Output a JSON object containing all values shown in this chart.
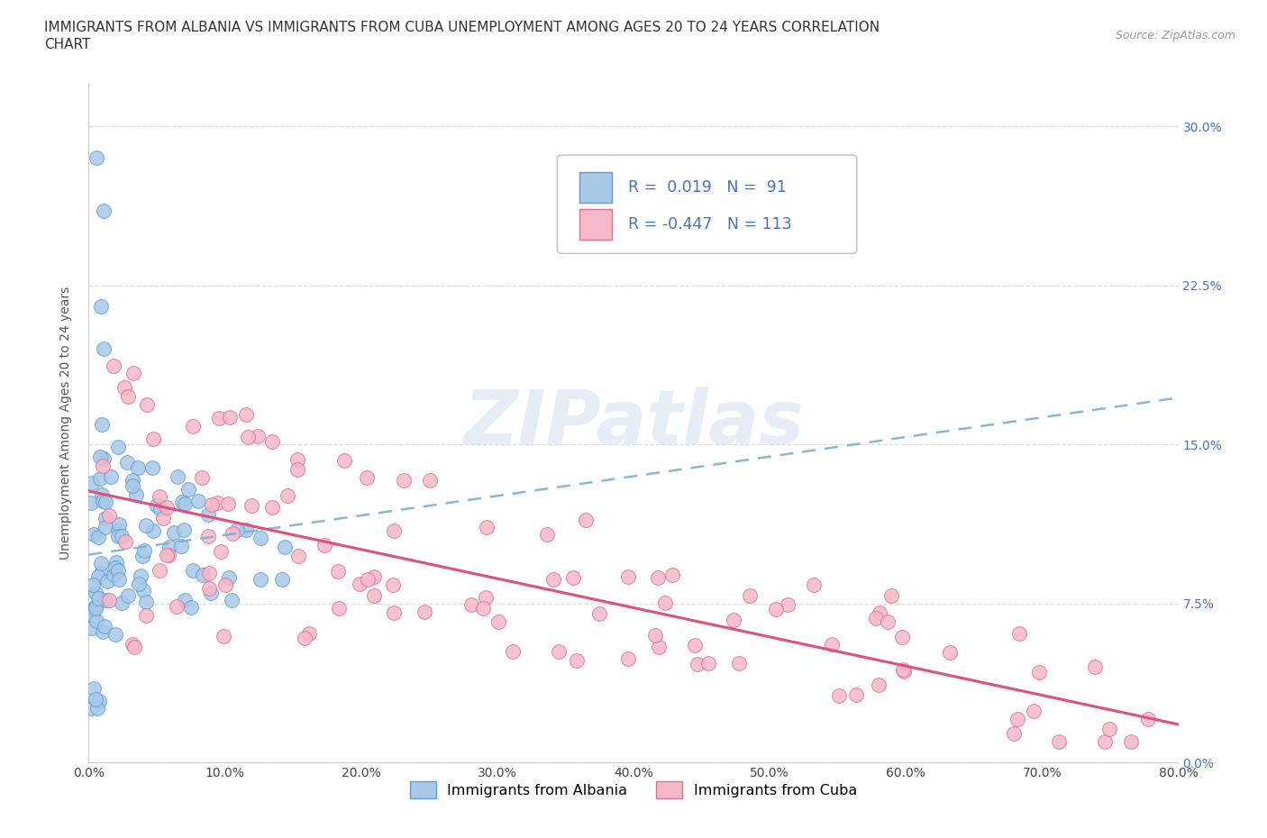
{
  "title_line1": "IMMIGRANTS FROM ALBANIA VS IMMIGRANTS FROM CUBA UNEMPLOYMENT AMONG AGES 20 TO 24 YEARS CORRELATION",
  "title_line2": "CHART",
  "source_text": "Source: ZipAtlas.com",
  "ylabel": "Unemployment Among Ages 20 to 24 years",
  "xlim": [
    0.0,
    0.8
  ],
  "ylim": [
    0.0,
    0.32
  ],
  "x_ticks": [
    0.0,
    0.1,
    0.2,
    0.3,
    0.4,
    0.5,
    0.6,
    0.7,
    0.8
  ],
  "x_tick_labels": [
    "0.0%",
    "10.0%",
    "20.0%",
    "30.0%",
    "40.0%",
    "50.0%",
    "60.0%",
    "70.0%",
    "80.0%"
  ],
  "y_ticks": [
    0.0,
    0.075,
    0.15,
    0.225,
    0.3
  ],
  "y_tick_labels": [
    "0.0%",
    "7.5%",
    "15.0%",
    "22.5%",
    "30.0%"
  ],
  "albania_color": "#a8c8e8",
  "albania_edge": "#5a9fd4",
  "cuba_color": "#f5b8c8",
  "cuba_edge": "#e07090",
  "trend_albania_color": "#7ab0d4",
  "trend_cuba_color": "#e0507a",
  "legend_albania_label": "Immigrants from Albania",
  "legend_cuba_label": "Immigrants from Cuba",
  "R_albania": 0.019,
  "N_albania": 91,
  "R_cuba": -0.447,
  "N_cuba": 113,
  "watermark_text": "ZIPatlas",
  "background_color": "#ffffff",
  "grid_color": "#dddddd",
  "title_fontsize": 11,
  "axis_label_fontsize": 10,
  "tick_fontsize": 10,
  "right_tick_color": "#4472c4",
  "albania_trend_x0": 0.0,
  "albania_trend_y0": 0.098,
  "albania_trend_x1": 0.8,
  "albania_trend_y1": 0.172,
  "cuba_trend_x0": 0.0,
  "cuba_trend_y0": 0.128,
  "cuba_trend_x1": 0.8,
  "cuba_trend_y1": 0.018
}
